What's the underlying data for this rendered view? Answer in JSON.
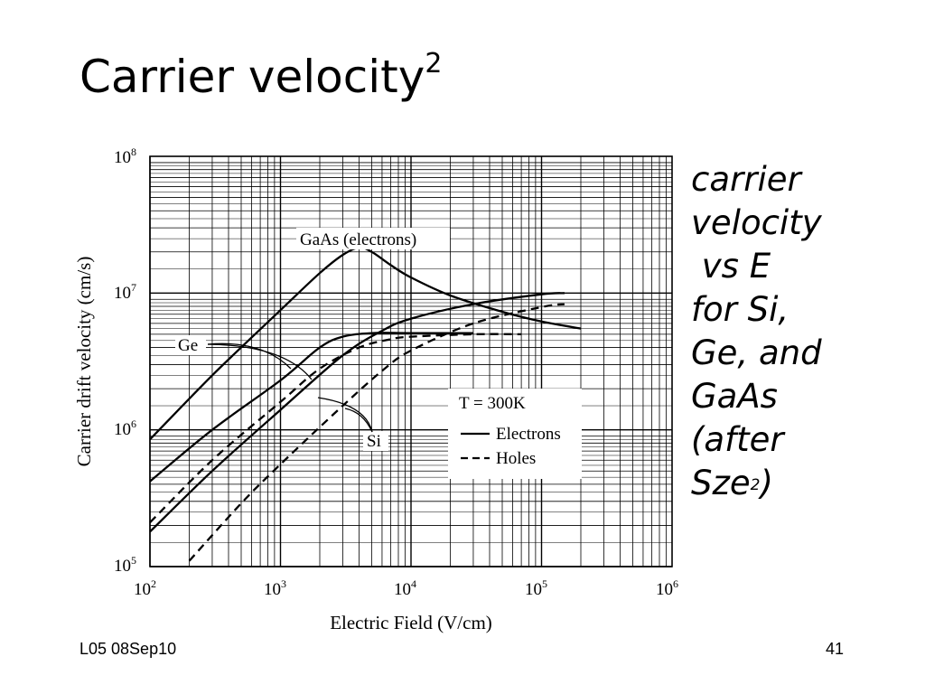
{
  "slide": {
    "title": "Carrier velocity",
    "title_superscript": "2",
    "side_text_lines": [
      "carrier",
      "velocity",
      " vs E",
      "for Si,",
      "Ge, and",
      "GaAs",
      "(after"
    ],
    "side_text_last": "Sze",
    "side_text_last_superscript": "2",
    "side_text_last_suffix": ")",
    "footer_left": "L05 08Sep10",
    "page_number": "41"
  },
  "chart_data": {
    "type": "line",
    "xscale": "log",
    "yscale": "log",
    "xlim": [
      100,
      1000000
    ],
    "ylim": [
      100000,
      100000000
    ],
    "grid": true,
    "xlabel": "Electric Field (V/cm)",
    "ylabel": "Carrier drift velocity (cm/s)",
    "x_tick_labels": [
      {
        "base": "10",
        "exp": "2"
      },
      {
        "base": "10",
        "exp": "3"
      },
      {
        "base": "10",
        "exp": "4"
      },
      {
        "base": "10",
        "exp": "5"
      },
      {
        "base": "10",
        "exp": "6"
      }
    ],
    "y_tick_labels": [
      {
        "base": "10",
        "exp": "5"
      },
      {
        "base": "10",
        "exp": "6"
      },
      {
        "base": "10",
        "exp": "7"
      },
      {
        "base": "10",
        "exp": "8"
      }
    ],
    "legend": {
      "title": "T = 300K",
      "items": [
        {
          "label": "Electrons",
          "style": "solid"
        },
        {
          "label": "Holes",
          "style": "dashed"
        }
      ]
    },
    "annotations": [
      {
        "text": "GaAs (electrons)"
      },
      {
        "text": "Ge"
      },
      {
        "text": "Si"
      }
    ],
    "series": [
      {
        "material": "GaAs",
        "carrier": "electrons",
        "style": "solid",
        "points": [
          [
            100,
            850000
          ],
          [
            300,
            2500000
          ],
          [
            1000,
            7500000
          ],
          [
            2000,
            14000000
          ],
          [
            3000,
            19000000
          ],
          [
            4000,
            21500000
          ],
          [
            5000,
            20000000
          ],
          [
            7000,
            16000000
          ],
          [
            10000,
            13000000
          ],
          [
            20000,
            9600000
          ],
          [
            50000,
            7300000
          ],
          [
            100000,
            6200000
          ],
          [
            200000,
            5500000
          ]
        ]
      },
      {
        "material": "Ge",
        "carrier": "electrons",
        "style": "solid",
        "points": [
          [
            100,
            420000
          ],
          [
            300,
            1000000
          ],
          [
            1000,
            2300000
          ],
          [
            2000,
            4000000
          ],
          [
            3000,
            4800000
          ],
          [
            5000,
            5100000
          ],
          [
            10000,
            5100000
          ],
          [
            30000,
            5100000
          ]
        ]
      },
      {
        "material": "Ge",
        "carrier": "holes",
        "style": "dashed",
        "points": [
          [
            100,
            210000
          ],
          [
            300,
            600000
          ],
          [
            1000,
            1600000
          ],
          [
            2000,
            2800000
          ],
          [
            4000,
            4000000
          ],
          [
            7000,
            4600000
          ],
          [
            10000,
            4800000
          ],
          [
            30000,
            5000000
          ],
          [
            70000,
            5000000
          ]
        ]
      },
      {
        "material": "Si",
        "carrier": "electrons",
        "style": "solid",
        "points": [
          [
            100,
            180000
          ],
          [
            300,
            500000
          ],
          [
            1000,
            1400000
          ],
          [
            3000,
            3500000
          ],
          [
            6000,
            5300000
          ],
          [
            10000,
            6500000
          ],
          [
            30000,
            8300000
          ],
          [
            100000,
            9800000
          ],
          [
            150000,
            10000000
          ]
        ]
      },
      {
        "material": "Si",
        "carrier": "holes",
        "style": "dashed",
        "points": [
          [
            200,
            110000
          ],
          [
            500,
            290000
          ],
          [
            1000,
            560000
          ],
          [
            3000,
            1500000
          ],
          [
            6000,
            2700000
          ],
          [
            10000,
            3800000
          ],
          [
            30000,
            6000000
          ],
          [
            100000,
            7900000
          ],
          [
            150000,
            8300000
          ]
        ]
      }
    ]
  }
}
